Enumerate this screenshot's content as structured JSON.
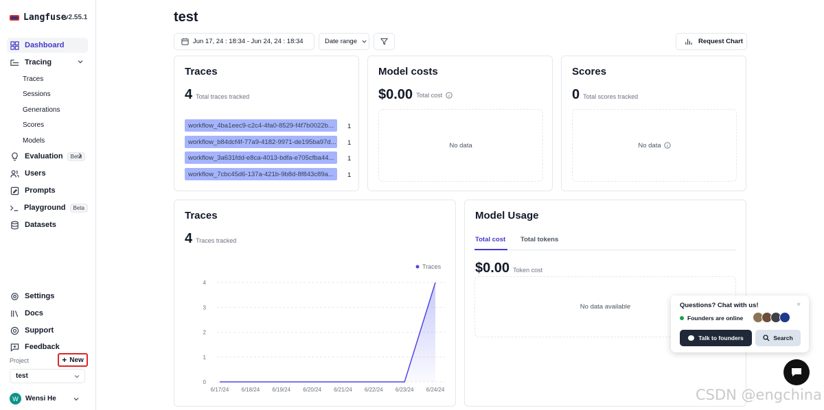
{
  "app": {
    "name": "Langfuse",
    "version": "v2.55.1"
  },
  "sidebar": {
    "items": [
      {
        "label": "Dashboard"
      },
      {
        "label": "Tracing"
      },
      {
        "label": "Evaluation",
        "badge": "Beta"
      },
      {
        "label": "Users"
      },
      {
        "label": "Prompts"
      },
      {
        "label": "Playground",
        "badge": "Beta"
      },
      {
        "label": "Datasets"
      }
    ],
    "tracing_sub": [
      "Traces",
      "Sessions",
      "Generations",
      "Scores",
      "Models"
    ],
    "bottom": [
      {
        "label": "Settings"
      },
      {
        "label": "Docs"
      },
      {
        "label": "Support"
      },
      {
        "label": "Feedback"
      }
    ],
    "project_label": "Project",
    "new_label": "New",
    "project_value": "test",
    "user": {
      "initial": "W",
      "name": "Wensi He"
    }
  },
  "main": {
    "title": "test",
    "date_range": "Jun 17, 24 : 18:34 - Jun 24, 24 : 18:34",
    "date_select": "Date range",
    "request_chart": "Request Chart",
    "traces_card": {
      "title": "Traces",
      "count": "4",
      "sub": "Total traces tracked",
      "rows": [
        {
          "name": "workflow_4ba1eec9-c2c4-4fa0-8529-f4f7b0022b...",
          "count": "1"
        },
        {
          "name": "workflow_b84dcf4f-77a9-4182-9971-de195ba97d...",
          "count": "1"
        },
        {
          "name": "workflow_3a631fdd-e8ca-4013-bdfa-e705cfba44...",
          "count": "1"
        },
        {
          "name": "workflow_7cbc45d6-137a-421b-9b8d-8f843c89a...",
          "count": "1"
        }
      ]
    },
    "costs_card": {
      "title": "Model costs",
      "amount": "$0.00",
      "sub": "Total cost",
      "nodata": "No data"
    },
    "scores_card": {
      "title": "Scores",
      "count": "0",
      "sub": "Total scores tracked",
      "nodata": "No data"
    },
    "traces_chart_card": {
      "title": "Traces",
      "count": "4",
      "sub": "Traces tracked"
    },
    "usage_card": {
      "title": "Model Usage",
      "tabs": [
        "Total cost",
        "Total tokens"
      ],
      "amount": "$0.00",
      "sub": "Token cost",
      "nodata": "No data available"
    }
  },
  "chat": {
    "title": "Questions? Chat with us!",
    "close": "×",
    "online": "Founders are online",
    "talk": "Talk to founders",
    "search": "Search"
  },
  "watermark": "CSDN @engchina",
  "colors": {
    "accent": "#4f46e5",
    "bar": "#a5b4fc",
    "active_nav": "#4338ca"
  },
  "chart_data": {
    "type": "area",
    "categories": [
      "6/17/24",
      "6/18/24",
      "6/19/24",
      "6/20/24",
      "6/21/24",
      "6/22/24",
      "6/23/24",
      "6/24/24"
    ],
    "series": [
      {
        "name": "Traces",
        "values": [
          0,
          0,
          0,
          0,
          0,
          0,
          0,
          4
        ]
      }
    ],
    "yticks": [
      "0",
      "1",
      "2",
      "3",
      "4"
    ],
    "ylim": [
      0,
      4
    ],
    "legend": "top-right",
    "grid": true
  }
}
